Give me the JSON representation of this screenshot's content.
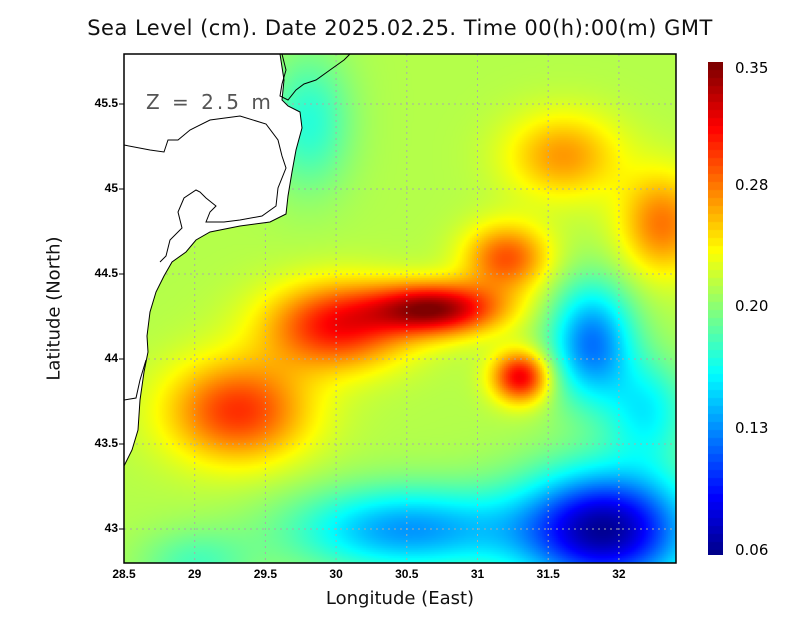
{
  "title": "Sea Level (cm). Date 2025.02.25. Time 00(h):00(m) GMT",
  "depth_label": "Z = 2.5 m",
  "x_axis": {
    "label": "Longitude (East)",
    "ticks": [
      "28.5",
      "29",
      "29.5",
      "30",
      "30.5",
      "31",
      "31.5",
      "32"
    ],
    "range": [
      28.5,
      32.4
    ]
  },
  "y_axis": {
    "label": "Latitude (North)",
    "ticks": [
      "45.5",
      "45",
      "44.5",
      "44",
      "43.5",
      "43"
    ],
    "range": [
      42.8,
      45.79
    ]
  },
  "colorbar": {
    "ticks": [
      "0.35",
      "0.28",
      "0.20",
      "0.13",
      "0.06"
    ],
    "min": 0.06,
    "max": 0.35,
    "colormap": "jet"
  },
  "chart_data": {
    "type": "heatmap",
    "title": "Sea Level (cm). Date 2025.02.25. Time 00(h):00(m) GMT",
    "xlabel": "Longitude (East)",
    "ylabel": "Latitude (North)",
    "xlim": [
      28.5,
      32.4
    ],
    "ylim": [
      42.8,
      45.79
    ],
    "vlim": [
      0.06,
      0.35
    ],
    "grid": true,
    "features": [
      {
        "name": "maximum",
        "lon": 30.7,
        "lat": 44.3,
        "value": 0.35
      },
      {
        "name": "secondary max",
        "lon": 31.3,
        "lat": 43.9,
        "value": 0.32
      },
      {
        "name": "minimum",
        "lon": 31.8,
        "lat": 43.0,
        "value": 0.07
      },
      {
        "name": "cyan eddy",
        "lon": 31.8,
        "lat": 44.1,
        "value": 0.15
      },
      {
        "name": "orange NE",
        "lon": 32.3,
        "lat": 44.8,
        "value": 0.29
      }
    ]
  }
}
